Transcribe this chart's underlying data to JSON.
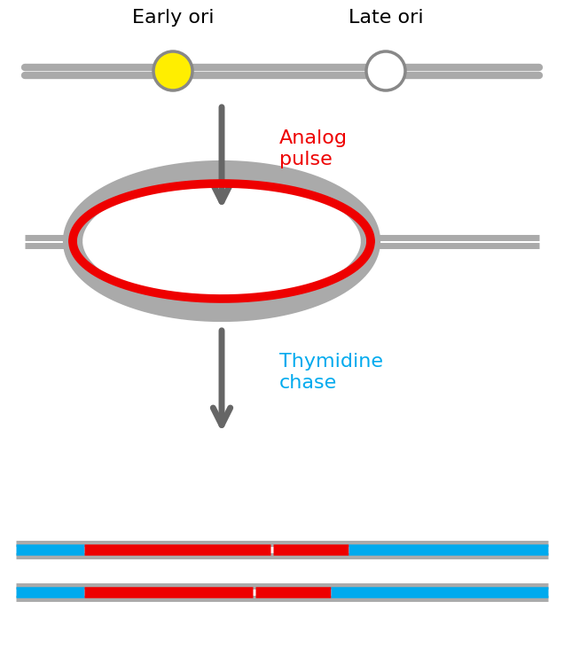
{
  "fig_width": 6.36,
  "fig_height": 7.4,
  "bg_color": "#ffffff",
  "gray_line_color": "#aaaaaa",
  "gray_dark_color": "#888888",
  "red_color": "#ee0000",
  "blue_color": "#00aaee",
  "yellow_color": "#ffee00",
  "arrow_color": "#666666",
  "early_ori_label": "Early ori",
  "late_ori_label": "Late ori",
  "analog_pulse_label": "Analog\npulse",
  "thymidine_chase_label": "Thymidine\nchase",
  "label_fontsize": 16
}
